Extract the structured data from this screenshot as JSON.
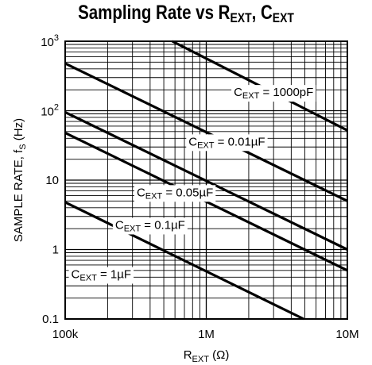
{
  "chart_data": {
    "type": "line",
    "title": {
      "main": "Sampling Rate vs R",
      "sub1": "EXT",
      "sep": ", C",
      "sub2": "EXT"
    },
    "xlabel": {
      "main": "R",
      "sub": "EXT",
      "suffix": " (Ω)"
    },
    "ylabel": {
      "main": "SAMPLE RATE, f",
      "sub": "S",
      "suffix": " (Hz)"
    },
    "x_scale": "log",
    "y_scale": "log",
    "xlim": [
      100000,
      10000000
    ],
    "ylim": [
      0.1,
      1000
    ],
    "grid": true,
    "x_ticks": [
      {
        "value": 100000,
        "label": "100k"
      },
      {
        "value": 1000000,
        "label": "1M"
      },
      {
        "value": 10000000,
        "label": "10M"
      }
    ],
    "y_ticks": [
      {
        "value": 0.1,
        "label": "0.1"
      },
      {
        "value": 1,
        "label": "1"
      },
      {
        "value": 10,
        "label": "10"
      }
    ],
    "y_ticks_exp": [
      {
        "value": 100,
        "base": "10",
        "exp": "2"
      },
      {
        "value": 1000,
        "base": "10",
        "exp": "3"
      }
    ],
    "series": [
      {
        "name": "C_EXT = 1000pF",
        "label_parts": [
          "C",
          "EXT",
          " = 1000pF"
        ],
        "x": [
          575000,
          10000000
        ],
        "y": [
          1000,
          52
        ],
        "label_at": [
          3000000,
          180
        ]
      },
      {
        "name": "C_EXT = 0.01µF",
        "label_parts": [
          "C",
          "EXT",
          " = 0.01µF"
        ],
        "x": [
          100000,
          10000000
        ],
        "y": [
          480,
          5
        ],
        "label_at": [
          1400000,
          35
        ]
      },
      {
        "name": "C_EXT = 0.05µF",
        "label_parts": [
          "C",
          "EXT",
          " = 0.05µF"
        ],
        "x": [
          100000,
          10000000
        ],
        "y": [
          95,
          1.0
        ],
        "label_at": [
          600000,
          6.5
        ]
      },
      {
        "name": "C_EXT = 0.1µF",
        "label_parts": [
          "C",
          "EXT",
          " = 0.1µF"
        ],
        "x": [
          100000,
          10000000
        ],
        "y": [
          48,
          0.5
        ],
        "label_at": [
          400000,
          2.2
        ]
      },
      {
        "name": "C_EXT = 1µF",
        "label_parts": [
          "C",
          "EXT",
          " = 1µF"
        ],
        "x": [
          100000,
          4900000
        ],
        "y": [
          4.8,
          0.1
        ],
        "label_at": [
          180000,
          0.43
        ]
      }
    ]
  }
}
